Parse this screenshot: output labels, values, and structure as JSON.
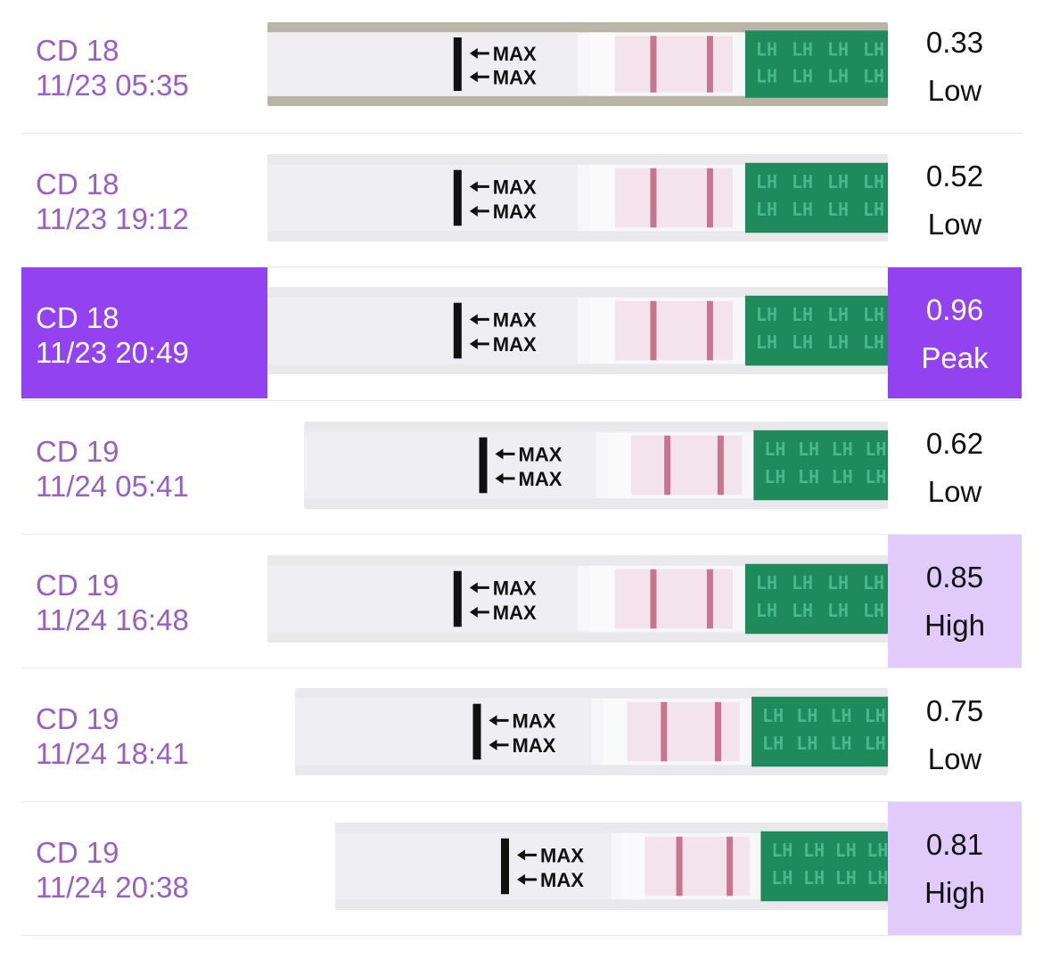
{
  "rows": [
    {
      "day": "CD 18",
      "datetime": "11/23 05:35",
      "value": "0.33",
      "level": "Low",
      "status": "low"
    },
    {
      "day": "CD 18",
      "datetime": "11/23 19:12",
      "value": "0.52",
      "level": "Low",
      "status": "low"
    },
    {
      "day": "CD 18",
      "datetime": "11/23 20:49",
      "value": "0.96",
      "level": "Peak",
      "status": "peak"
    },
    {
      "day": "CD 19",
      "datetime": "11/24 05:41",
      "value": "0.62",
      "level": "Low",
      "status": "low"
    },
    {
      "day": "CD 19",
      "datetime": "11/24 16:48",
      "value": "0.85",
      "level": "High",
      "status": "high"
    },
    {
      "day": "CD 19",
      "datetime": "11/24 18:41",
      "value": "0.75",
      "level": "Low",
      "status": "low"
    },
    {
      "day": "CD 19",
      "datetime": "11/24 20:38",
      "value": "0.81",
      "level": "High",
      "status": "high"
    }
  ],
  "strip": {
    "max_label": "MAX",
    "lh_label": "LH"
  },
  "colors": {
    "label_text": "#9a5fc4",
    "peak_bg": "#9243ef",
    "high_bg": "#e1cbfb",
    "strip_green": "#1f8a5b",
    "test_line": "#c2607f"
  }
}
